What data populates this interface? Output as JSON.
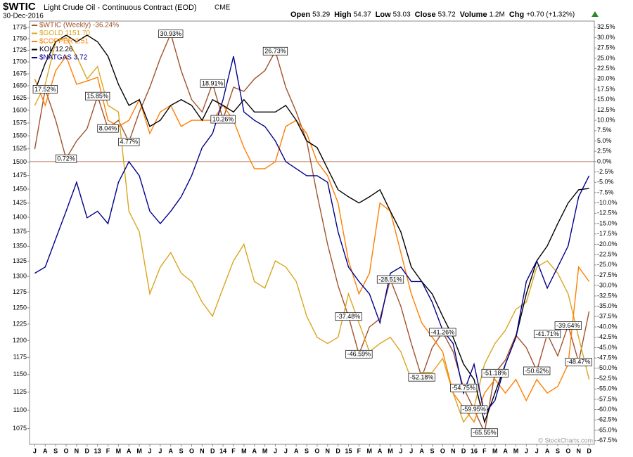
{
  "chart_data": {
    "type": "line",
    "title": "$WTIC",
    "subtitle": "Light Crude Oil - Continuous Contract (EOD)",
    "exchange": "CME",
    "date": "30-Dec-2016",
    "quote": [
      {
        "label": "Open",
        "value": "53.29"
      },
      {
        "label": "High",
        "value": "54.37"
      },
      {
        "label": "Low",
        "value": "53.03"
      },
      {
        "label": "Close",
        "value": "53.72"
      },
      {
        "label": "Volume",
        "value": "1.2M"
      },
      {
        "label": "Chg",
        "value": "+0.70 (+1.32%)"
      }
    ],
    "watermark": "© StockCharts.com",
    "legend": "upper left",
    "ylog": true,
    "categories": [
      "J",
      "A",
      "S",
      "O",
      "N",
      "D",
      "13",
      "F",
      "M",
      "A",
      "M",
      "J",
      "J",
      "A",
      "S",
      "O",
      "N",
      "D",
      "14",
      "F",
      "M",
      "A",
      "M",
      "J",
      "J",
      "A",
      "S",
      "O",
      "N",
      "D",
      "15",
      "F",
      "M",
      "A",
      "M",
      "J",
      "J",
      "A",
      "S",
      "O",
      "N",
      "D",
      "16",
      "F",
      "M",
      "A",
      "M",
      "J",
      "J",
      "A",
      "S",
      "O",
      "N",
      "D"
    ],
    "ylim": [
      1054,
      1789
    ],
    "yticks": [
      1775,
      1750,
      1725,
      1700,
      1675,
      1650,
      1625,
      1600,
      1575,
      1550,
      1525,
      1500,
      1475,
      1450,
      1425,
      1400,
      1375,
      1350,
      1325,
      1300,
      1275,
      1250,
      1225,
      1200,
      1175,
      1150,
      1125,
      1100,
      1075
    ],
    "y2lim": [
      -68.4,
      34
    ],
    "y2ticks": [
      {
        "value": 32.5,
        "label": "32.5%"
      },
      {
        "value": 30,
        "label": "30.0%"
      },
      {
        "value": 27.5,
        "label": "27.5%"
      },
      {
        "value": 25,
        "label": "25.0%"
      },
      {
        "value": 22.5,
        "label": "22.5%"
      },
      {
        "value": 20,
        "label": "20.0%"
      },
      {
        "value": 17.5,
        "label": "17.5%"
      },
      {
        "value": 15,
        "label": "15.0%"
      },
      {
        "value": 12.5,
        "label": "12.5%"
      },
      {
        "value": 10,
        "label": "10.0%"
      },
      {
        "value": 7.5,
        "label": "7.5%"
      },
      {
        "value": 5,
        "label": "5.0%"
      },
      {
        "value": 2.5,
        "label": "2.5%"
      },
      {
        "value": 0,
        "label": "0.0%"
      },
      {
        "value": -2.5,
        "label": "-2.5%"
      },
      {
        "value": -5,
        "label": "-5.0%"
      },
      {
        "value": -7.5,
        "label": "-7.5%"
      },
      {
        "value": -10,
        "label": "-10.0%"
      },
      {
        "value": -12.5,
        "label": "-12.5%"
      },
      {
        "value": -15,
        "label": "-15.0%"
      },
      {
        "value": -17.5,
        "label": "-17.5%"
      },
      {
        "value": -20,
        "label": "-20.0%"
      },
      {
        "value": -22.5,
        "label": "-22.5%"
      },
      {
        "value": -25,
        "label": "-25.0%"
      },
      {
        "value": -27.5,
        "label": "-27.5%"
      },
      {
        "value": -30,
        "label": "-30.0%"
      },
      {
        "value": -32.5,
        "label": "-32.5%"
      },
      {
        "value": -35,
        "label": "-35.0%"
      },
      {
        "value": -37.5,
        "label": "-37.5%"
      },
      {
        "value": -40,
        "label": "-40.0%"
      },
      {
        "value": -42.5,
        "label": "-42.5%"
      },
      {
        "value": -45,
        "label": "-45.0%"
      },
      {
        "value": -47.5,
        "label": "-47.5%"
      },
      {
        "value": -50,
        "label": "-50.0%"
      },
      {
        "value": -52.5,
        "label": "-52.5%"
      },
      {
        "value": -55,
        "label": "-55.0%"
      },
      {
        "value": -57.5,
        "label": "-57.5%"
      },
      {
        "value": -60,
        "label": "-60.0%"
      },
      {
        "value": -62.5,
        "label": "-62.5%"
      },
      {
        "value": -65,
        "label": "-65.0%"
      },
      {
        "value": -67.5,
        "label": "-67.5%"
      }
    ],
    "series": [
      {
        "name": "$WTIC (Weekly) -36.24%",
        "color": "#a0522d",
        "axis": "y2",
        "values": [
          3,
          17.52,
          10,
          0.72,
          5,
          8,
          15.85,
          8.04,
          10,
          4.77,
          12,
          18,
          25,
          30.93,
          22,
          15,
          12,
          18.91,
          10.26,
          18,
          17,
          20,
          22,
          26.73,
          18,
          12,
          5,
          -8,
          -20,
          -30,
          -37.48,
          -46.59,
          -40,
          -38,
          -28.51,
          -35,
          -44,
          -52.18,
          -45,
          -41.26,
          -46,
          -54.75,
          -59.95,
          -65.55,
          -51.18,
          -48,
          -42,
          -45,
          -50.62,
          -41.71,
          -47,
          -39.64,
          -48.47,
          -36.24
        ],
        "value_labels": [
          null,
          "17.52%",
          null,
          "0.72%",
          null,
          null,
          "15.85%",
          "8.04%",
          null,
          "4.77%",
          null,
          null,
          null,
          "30.93%",
          null,
          null,
          null,
          "18.91%",
          "10.26%",
          null,
          null,
          null,
          null,
          "26.73%",
          null,
          null,
          null,
          null,
          null,
          null,
          "-37.48%",
          "-46.59%",
          null,
          null,
          "-28.51%",
          null,
          null,
          "-52.18%",
          null,
          "-41.26%",
          null,
          "-54.75%",
          "-59.95%",
          "-65.55%",
          "-51.18%",
          null,
          null,
          null,
          "-50.62%",
          "-41.71%",
          null,
          "-39.64%",
          "-48.47%",
          null
        ]
      },
      {
        "name": "$GOLD 1151.70",
        "color": "#daa520",
        "axis": "y2",
        "values": [
          13.6,
          18.7,
          29,
          30,
          25.5,
          20,
          23,
          13.6,
          12,
          -12,
          -17,
          -32,
          -25.5,
          -22,
          -27,
          -29,
          -34,
          -37.4,
          -30.6,
          -24,
          -20,
          -29,
          -30.6,
          -24,
          -25.5,
          -29,
          -37.4,
          -42.5,
          -44,
          -42.5,
          -32,
          -39,
          -46,
          -44,
          -42.5,
          -46,
          -52.7,
          -51,
          -51,
          -47.6,
          -56,
          -63,
          -59.5,
          -49,
          -44,
          -40.8,
          -35.7,
          -34,
          -25.5,
          -24,
          -27,
          -32,
          -42.5,
          -52.7
        ]
      },
      {
        "name": "$COPPER 2.51",
        "color": "#ff7f00",
        "axis": "y2",
        "values": [
          20,
          13.6,
          22,
          25.5,
          18.7,
          19.5,
          20.4,
          10,
          8.5,
          10,
          15,
          6.8,
          12,
          13.6,
          8.5,
          10,
          10,
          10,
          13.6,
          10,
          3.4,
          -1.7,
          -1.7,
          0,
          8.5,
          10,
          6.8,
          0,
          -3.4,
          -10,
          -24,
          -32,
          -27,
          -10,
          -12,
          -22,
          -32,
          -39,
          -42.5,
          -46,
          -56,
          -59.5,
          -63,
          -56,
          -52.7,
          -56,
          -52.7,
          -57.8,
          -52.7,
          -56,
          -54.4,
          -49,
          -25.5,
          -29
        ]
      },
      {
        "name": "KOL 12.26",
        "color": "#000000",
        "axis": "y2",
        "values": [
          17,
          23.8,
          29,
          30.6,
          29,
          30.6,
          29,
          25.5,
          18.7,
          13.6,
          15,
          8.5,
          10,
          13.6,
          15,
          13.6,
          10,
          15,
          13.6,
          12,
          15,
          12,
          12,
          12,
          13.6,
          10,
          5,
          3.4,
          -1.7,
          -6.8,
          -8.5,
          -10,
          -8.5,
          -6.8,
          -12,
          -17,
          -25.5,
          -29,
          -32,
          -37.4,
          -42.5,
          -49,
          -52.7,
          -63,
          -56,
          -49,
          -42.5,
          -32,
          -24,
          -20.4,
          -15,
          -10,
          -6.8,
          -6.5
        ]
      },
      {
        "name": "$NATGAS 3.72",
        "color": "#00008b",
        "axis": "y2",
        "values": [
          -27,
          -25.5,
          -18.7,
          -12,
          -5,
          -13.6,
          -12,
          -15,
          -5,
          0,
          -3.4,
          -12,
          -15,
          -12,
          -8.5,
          -3.4,
          3.4,
          6.8,
          15,
          25.5,
          12,
          10,
          8.5,
          5,
          0,
          -1.7,
          -3.4,
          -3.4,
          -5,
          -17,
          -25.5,
          -29,
          -32,
          -39,
          -27,
          -25.5,
          -29,
          -29,
          -34,
          -40.8,
          -44,
          -56,
          -49,
          -61,
          -57.8,
          -49,
          -42.5,
          -29,
          -24,
          -30.6,
          -25.5,
          -20.4,
          -8.5,
          -3.4
        ]
      }
    ]
  }
}
